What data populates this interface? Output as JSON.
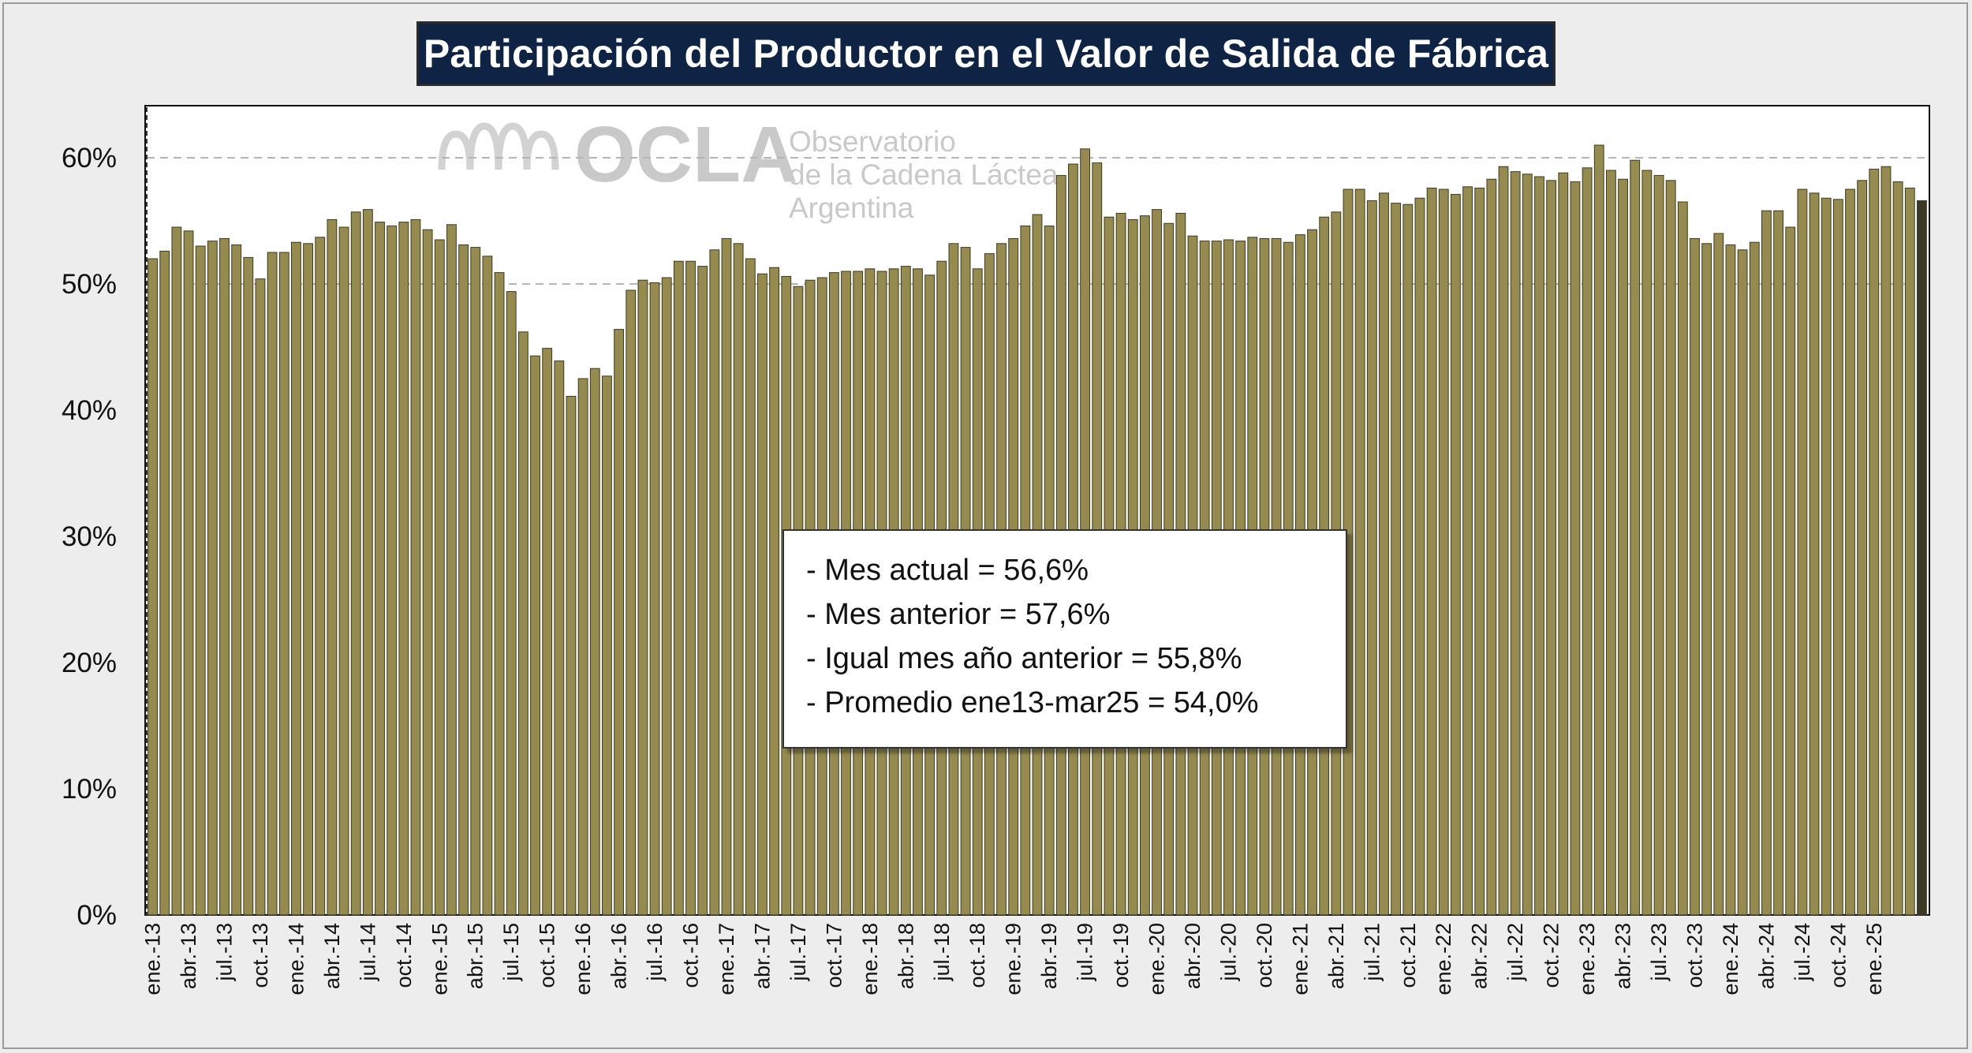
{
  "chart_data": {
    "type": "bar",
    "title": "Participación del Productor en el Valor de Salida de Fábrica",
    "x_start": "ene.-13",
    "x_end": "mar.-25",
    "x_tick_labels": [
      "ene.-13",
      "abr.-13",
      "jul.-13",
      "oct.-13",
      "ene.-14",
      "abr.-14",
      "jul.-14",
      "oct.-14",
      "ene.-15",
      "abr.-15",
      "jul.-15",
      "oct.-15",
      "ene.-16",
      "abr.-16",
      "jul.-16",
      "oct.-16",
      "ene.-17",
      "abr.-17",
      "jul.-17",
      "oct.-17",
      "ene.-18",
      "abr.-18",
      "jul.-18",
      "oct.-18",
      "ene.-19",
      "abr.-19",
      "jul.-19",
      "oct.-19",
      "ene.-20",
      "abr.-20",
      "jul.-20",
      "oct.-20",
      "ene.-21",
      "abr.-21",
      "jul.-21",
      "oct.-21",
      "ene.-22",
      "abr.-22",
      "jul.-22",
      "oct.-22",
      "ene.-23",
      "abr.-23",
      "jul.-23",
      "oct.-23",
      "ene.-24",
      "abr.-24",
      "jul.-24",
      "oct.-24",
      "ene.-25"
    ],
    "values": [
      52.0,
      52.6,
      54.5,
      54.2,
      53.0,
      53.4,
      53.6,
      53.1,
      52.1,
      50.4,
      52.5,
      52.5,
      53.3,
      53.2,
      53.7,
      55.1,
      54.5,
      55.7,
      55.9,
      54.9,
      54.6,
      54.9,
      55.1,
      54.3,
      53.5,
      54.7,
      53.1,
      52.9,
      52.2,
      50.9,
      49.4,
      46.2,
      44.3,
      44.9,
      43.9,
      41.1,
      42.5,
      43.3,
      42.7,
      46.4,
      49.5,
      50.3,
      50.1,
      50.5,
      51.8,
      51.8,
      51.4,
      52.7,
      53.6,
      53.2,
      52.0,
      50.8,
      51.3,
      50.6,
      49.8,
      50.3,
      50.5,
      50.9,
      51.0,
      51.0,
      51.2,
      51.0,
      51.2,
      51.4,
      51.2,
      50.7,
      51.8,
      53.2,
      52.9,
      51.2,
      52.4,
      53.2,
      53.6,
      54.6,
      55.5,
      54.6,
      58.6,
      59.5,
      60.7,
      59.6,
      55.3,
      55.6,
      55.1,
      55.4,
      55.9,
      54.8,
      55.6,
      53.8,
      53.4,
      53.4,
      53.5,
      53.4,
      53.7,
      53.6,
      53.6,
      53.3,
      53.9,
      54.3,
      55.3,
      55.7,
      57.5,
      57.5,
      56.6,
      57.2,
      56.4,
      56.3,
      56.8,
      57.6,
      57.5,
      57.1,
      57.7,
      57.6,
      58.3,
      59.3,
      58.9,
      58.7,
      58.5,
      58.2,
      58.8,
      58.1,
      59.2,
      61.0,
      59.0,
      58.3,
      59.8,
      59.0,
      58.6,
      58.2,
      56.5,
      53.6,
      53.2,
      54.0,
      53.1,
      52.7,
      53.3,
      55.8,
      55.8,
      54.5,
      57.5,
      57.2,
      56.8,
      56.7,
      57.5,
      58.2,
      59.1,
      59.3,
      58.1,
      57.6,
      56.6
    ],
    "ylim": [
      0,
      64
    ],
    "y_ticks": [
      0,
      10,
      20,
      30,
      40,
      50,
      60
    ],
    "y_tick_labels": [
      "0%",
      "10%",
      "20%",
      "30%",
      "40%",
      "50%",
      "60%"
    ],
    "gridlines": [
      50,
      60
    ],
    "bar_color": "#958a4f",
    "bar_edge": "#3f3a1d",
    "highlight_last_color": "#3c3826",
    "annotations": [
      "- Mes actual = 56,6%",
      "- Mes anterior = 57,6%",
      "- Igual mes año anterior = 55,8%",
      "- Promedio ene13-mar25 = 54,0%"
    ]
  },
  "watermark": {
    "brand": "OCLA",
    "line1": "Observatorio",
    "line2": "de la Cadena Láctea",
    "line3": "Argentina"
  }
}
